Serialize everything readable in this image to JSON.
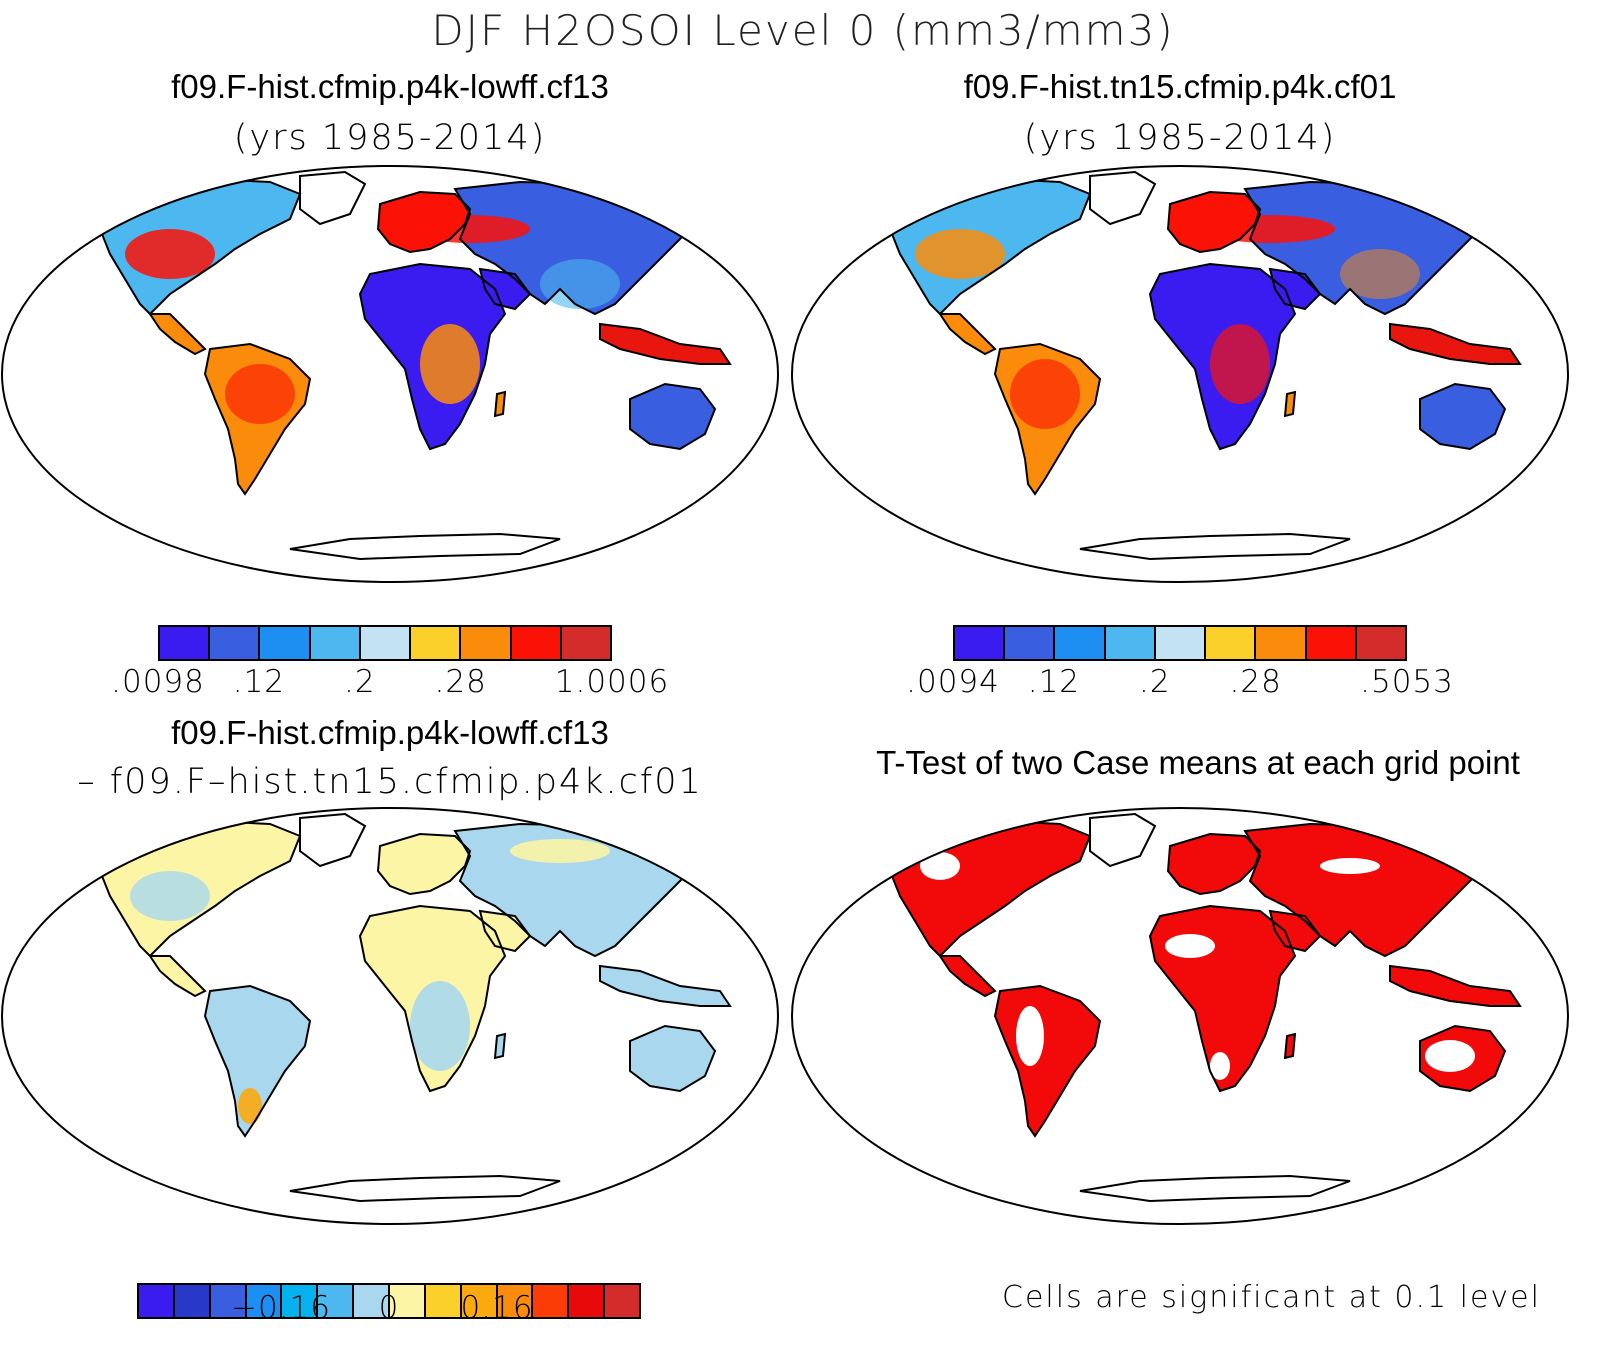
{
  "title": "DJF H2OSOI Level 0 (mm3/mm3)",
  "panels": {
    "top_left": {
      "title": "f09.F-hist.cfmip.p4k-lowff.cf13",
      "subtitle": "(yrs 1985-2014)"
    },
    "top_right": {
      "title": "f09.F-hist.tn15.cfmip.p4k.cf01",
      "subtitle": "(yrs 1985-2014)"
    },
    "bottom_left": {
      "title": "f09.F-hist.cfmip.p4k-lowff.cf13",
      "subtitle": "– f09.F–hist.tn15.cfmip.p4k.cf01"
    },
    "bottom_right": {
      "title": "T-Test of two Case means at each grid point",
      "note": "Cells are significant at 0.1 level"
    }
  },
  "colorbars": {
    "top_left": {
      "colors": [
        "#3a1cf0",
        "#3a5ee0",
        "#1e8ff2",
        "#4cb8ef",
        "#c3e3f4",
        "#fbd02a",
        "#fb8c0b",
        "#fb1207",
        "#d42b2b"
      ],
      "labels": [
        ".0098",
        ".12",
        ".2",
        ".28",
        "1.0006"
      ],
      "label_boundaries": [
        0,
        2,
        4,
        6,
        9
      ]
    },
    "top_right": {
      "colors": [
        "#3a1cf0",
        "#3a5ee0",
        "#1e8ff2",
        "#4cb8ef",
        "#c3e3f4",
        "#fbd02a",
        "#fb8c0b",
        "#fb1207",
        "#d42b2b"
      ],
      "labels": [
        ".0094",
        ".12",
        ".2",
        ".28",
        ".5053"
      ],
      "label_boundaries": [
        0,
        2,
        4,
        6,
        9
      ]
    },
    "bottom_left": {
      "colors": [
        "#3a1cf0",
        "#2838c8",
        "#3a5ee0",
        "#1e8ff2",
        "#06b2ee",
        "#4cb8ef",
        "#a9d8ee",
        "#fbf5a5",
        "#fbd02a",
        "#fbaa0e",
        "#fb8c0b",
        "#fb3c07",
        "#e80a0a",
        "#d42b2b"
      ],
      "labels": [
        "−0.16",
        "0",
        "0.16"
      ],
      "label_boundaries": [
        4,
        7,
        10
      ]
    }
  },
  "map_colors": {
    "top_dry": "#3a1cf0",
    "top_mid": "#4cb8ef",
    "top_wet": "#fb8c0b",
    "top_wettest": "#e8160f",
    "diff_pos": "#fbf5a5",
    "diff_neg": "#a9d8ee",
    "diff_strong_pos": "#fbaa0e",
    "ttest_sig": "#f20a0a"
  }
}
